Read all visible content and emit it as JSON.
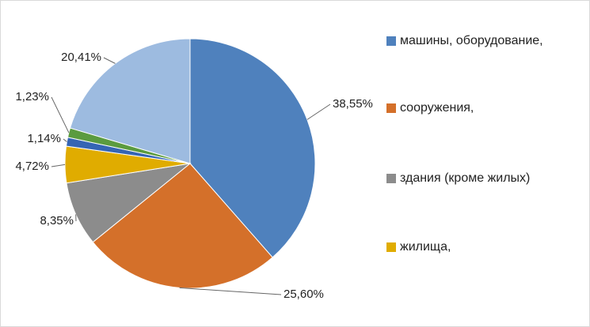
{
  "chart_data": {
    "type": "pie",
    "categories": [
      "машины, оборудование,",
      "сооружения,",
      "здания (кроме жилых)",
      "жилища,",
      null,
      null,
      null
    ],
    "values": [
      38.55,
      25.6,
      8.35,
      4.72,
      1.14,
      1.23,
      20.41
    ],
    "value_labels": [
      "38,55%",
      "25,60%",
      "8,35%",
      "4,72%",
      "1,14%",
      "1,23%",
      "20,41%"
    ],
    "colors": [
      "#4f81bd",
      "#d4702a",
      "#8c8c8c",
      "#e0ac00",
      "#3565b4",
      "#5b9b3f",
      "#9dbbe0"
    ],
    "legend": "right"
  }
}
